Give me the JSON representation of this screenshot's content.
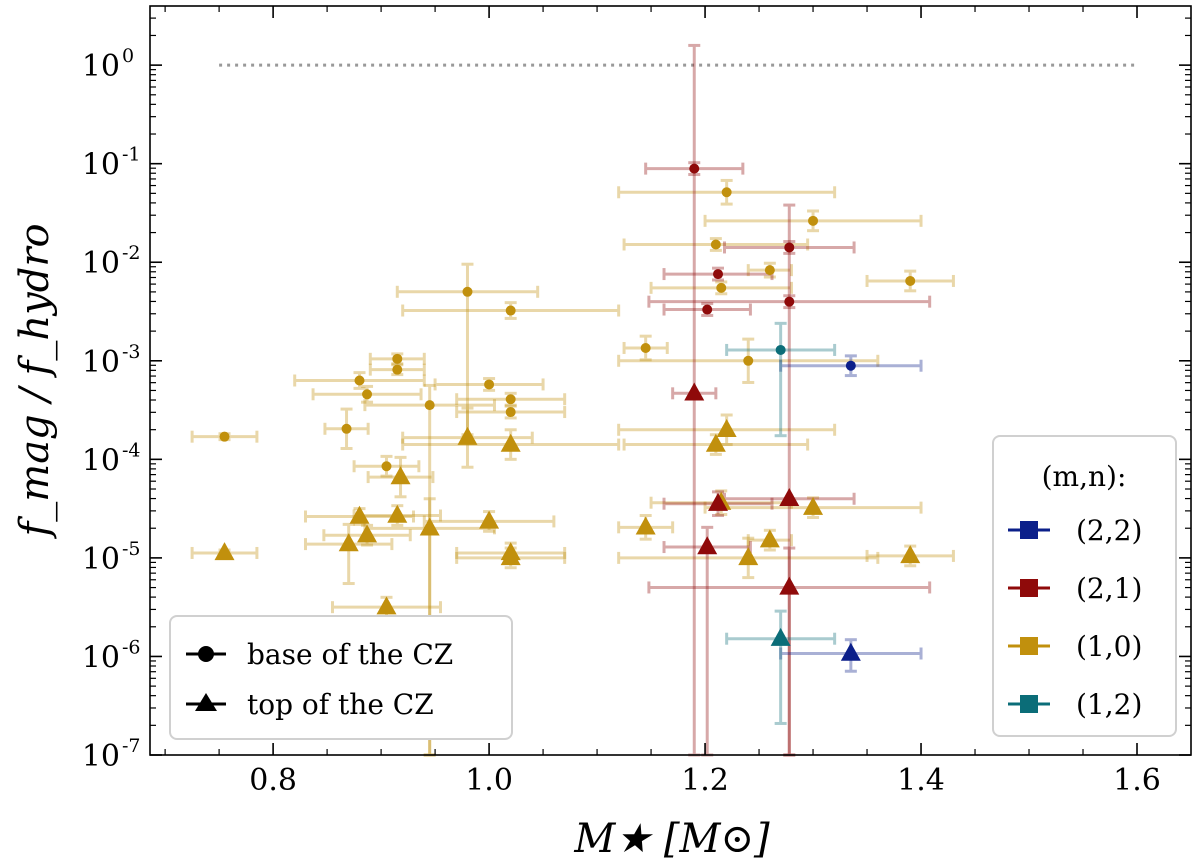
{
  "chart_data": {
    "type": "scatter",
    "title": "",
    "xlabel": "M★ [M⊙]",
    "ylabel": "f_mag / f_hydro",
    "xlim": [
      0.686,
      1.65
    ],
    "ylim_log10": [
      -7,
      0.6
    ],
    "yscale": "log",
    "x_ticks": [
      {
        "value": 0.8,
        "label": "0.8"
      },
      {
        "value": 1.0,
        "label": "1.0"
      },
      {
        "value": 1.2,
        "label": "1.2"
      },
      {
        "value": 1.4,
        "label": "1.4"
      },
      {
        "value": 1.6,
        "label": "1.6"
      }
    ],
    "y_ticks": [
      {
        "exp": 0,
        "base": "10",
        "power": "0"
      },
      {
        "exp": -1,
        "base": "10",
        "power": "-1"
      },
      {
        "exp": -2,
        "base": "10",
        "power": "-2"
      },
      {
        "exp": -3,
        "base": "10",
        "power": "-3"
      },
      {
        "exp": -4,
        "base": "10",
        "power": "-4"
      },
      {
        "exp": -5,
        "base": "10",
        "power": "-5"
      },
      {
        "exp": -6,
        "base": "10",
        "power": "-6"
      },
      {
        "exp": -7,
        "base": "10",
        "power": "-7"
      }
    ],
    "reference_line": {
      "y": 1.0,
      "x_range": [
        0.75,
        1.6
      ],
      "style": "dotted",
      "color": "#999999"
    },
    "colors": {
      "(2,2)": "#0b1f8a",
      "(2,1)": "#8f0a0a",
      "(1,0)": "#c1900d",
      "(1,2)": "#0b6d78"
    },
    "legend_modes": {
      "title": "(m,n):",
      "position": "lower-right",
      "entries": [
        "(2,2)",
        "(2,1)",
        "(1,0)",
        "(1,2)"
      ]
    },
    "legend_markers": {
      "position": "lower-left",
      "entries": [
        {
          "marker": "circle",
          "label": "base of the CZ"
        },
        {
          "marker": "triangle",
          "label": "top of the CZ"
        }
      ]
    },
    "series": [
      {
        "name": "(1,0) base of the CZ",
        "mode": "(1,0)",
        "marker": "circle",
        "points": [
          {
            "x": 0.755,
            "y": -3.77,
            "xerr": [
              0.03,
              0.03
            ],
            "yerr": [
              0.03,
              0.03
            ]
          },
          {
            "x": 0.88,
            "y": -3.2,
            "xerr": [
              0.06,
              0.06
            ],
            "yerr": [
              0.08,
              0.08
            ]
          },
          {
            "x": 0.887,
            "y": -3.34,
            "xerr": [
              0.05,
              0.05
            ],
            "yerr": [
              0.08,
              0.08
            ]
          },
          {
            "x": 0.915,
            "y": -2.98,
            "xerr": [
              0.025,
              0.025
            ],
            "yerr": [
              0.05,
              0.05
            ]
          },
          {
            "x": 0.915,
            "y": -3.09,
            "xerr": [
              0.025,
              0.025
            ],
            "yerr": [
              0.05,
              0.05
            ]
          },
          {
            "x": 0.868,
            "y": -3.69,
            "xerr": [
              0.02,
              0.02
            ],
            "yerr": [
              0.2,
              0.2
            ]
          },
          {
            "x": 0.905,
            "y": -4.07,
            "xerr": [
              0.03,
              0.03
            ],
            "yerr": [
              0.1,
              0.1
            ]
          },
          {
            "x": 0.945,
            "y": -3.45,
            "xerr": [
              0.06,
              0.06
            ],
            "yerr": [
              3.55,
              0.2
            ]
          },
          {
            "x": 0.98,
            "y": -2.3,
            "xerr": [
              0.065,
              0.065
            ],
            "yerr": [
              1.45,
              0.28
            ]
          },
          {
            "x": 1.0,
            "y": -3.24,
            "xerr": [
              0.05,
              0.05
            ],
            "yerr": [
              0.06,
              0.06
            ]
          },
          {
            "x": 1.02,
            "y": -2.49,
            "xerr": [
              0.1,
              0.1
            ],
            "yerr": [
              0.08,
              0.08
            ]
          },
          {
            "x": 1.02,
            "y": -3.39,
            "xerr": [
              0.05,
              0.05
            ],
            "yerr": [
              0.06,
              0.06
            ]
          },
          {
            "x": 1.02,
            "y": -3.52,
            "xerr": [
              0.05,
              0.05
            ],
            "yerr": [
              0.06,
              0.06
            ]
          },
          {
            "x": 1.145,
            "y": -2.87,
            "xerr": [
              0.02,
              0.02
            ],
            "yerr": [
              0.12,
              0.12
            ]
          },
          {
            "x": 1.21,
            "y": -1.82,
            "xerr": [
              0.085,
              0.085
            ],
            "yerr": [
              0.06,
              0.06
            ]
          },
          {
            "x": 1.215,
            "y": -2.26,
            "xerr": [
              0.065,
              0.065
            ],
            "yerr": [
              0.06,
              0.06
            ]
          },
          {
            "x": 1.22,
            "y": -1.29,
            "xerr": [
              0.1,
              0.1
            ],
            "yerr": [
              0.12,
              0.12
            ]
          },
          {
            "x": 1.24,
            "y": -3.0,
            "xerr": [
              0.12,
              0.12
            ],
            "yerr": [
              0.22,
              0.22
            ]
          },
          {
            "x": 1.26,
            "y": -2.08,
            "xerr": [
              0.02,
              0.02
            ],
            "yerr": [
              0.07,
              0.07
            ]
          },
          {
            "x": 1.3,
            "y": -1.58,
            "xerr": [
              0.1,
              0.1
            ],
            "yerr": [
              0.1,
              0.1
            ]
          },
          {
            "x": 1.39,
            "y": -2.19,
            "xerr": [
              0.04,
              0.04
            ],
            "yerr": [
              0.1,
              0.1
            ]
          }
        ]
      },
      {
        "name": "(1,0) top of the CZ",
        "mode": "(1,0)",
        "marker": "triangle",
        "points": [
          {
            "x": 0.755,
            "y": -4.95,
            "xerr": [
              0.03,
              0.03
            ],
            "yerr": [
              0.03,
              0.03
            ]
          },
          {
            "x": 0.87,
            "y": -4.86,
            "xerr": [
              0.04,
              0.04
            ],
            "yerr": [
              0.4,
              0.2
            ]
          },
          {
            "x": 0.88,
            "y": -4.58,
            "xerr": [
              0.05,
              0.05
            ],
            "yerr": [
              0.08,
              0.08
            ]
          },
          {
            "x": 0.887,
            "y": -4.77,
            "xerr": [
              0.04,
              0.04
            ],
            "yerr": [
              0.1,
              0.1
            ]
          },
          {
            "x": 0.905,
            "y": -5.5,
            "xerr": [
              0.05,
              0.05
            ],
            "yerr": [
              0.1,
              0.1
            ]
          },
          {
            "x": 0.915,
            "y": -4.57,
            "xerr": [
              0.04,
              0.04
            ],
            "yerr": [
              0.1,
              0.1
            ]
          },
          {
            "x": 0.918,
            "y": -4.18,
            "xerr": [
              0.03,
              0.03
            ],
            "yerr": [
              0.2,
              0.2
            ]
          },
          {
            "x": 0.945,
            "y": -4.7,
            "xerr": [
              0.06,
              0.06
            ],
            "yerr": [
              2.3,
              0.3
            ]
          },
          {
            "x": 0.98,
            "y": -3.78,
            "xerr": [
              0.06,
              0.06
            ],
            "yerr": [
              0.3,
              0.3
            ]
          },
          {
            "x": 1.0,
            "y": -4.63,
            "xerr": [
              0.06,
              0.06
            ],
            "yerr": [
              0.1,
              0.1
            ]
          },
          {
            "x": 1.02,
            "y": -3.85,
            "xerr": [
              0.1,
              0.1
            ],
            "yerr": [
              0.15,
              0.15
            ]
          },
          {
            "x": 1.02,
            "y": -4.95,
            "xerr": [
              0.05,
              0.05
            ],
            "yerr": [
              0.1,
              0.1
            ]
          },
          {
            "x": 1.02,
            "y": -5.0,
            "xerr": [
              0.05,
              0.05
            ],
            "yerr": [
              0.1,
              0.1
            ]
          },
          {
            "x": 1.145,
            "y": -4.69,
            "xerr": [
              0.025,
              0.025
            ],
            "yerr": [
              0.12,
              0.12
            ]
          },
          {
            "x": 1.21,
            "y": -3.85,
            "xerr": [
              0.085,
              0.085
            ],
            "yerr": [
              0.1,
              0.1
            ]
          },
          {
            "x": 1.215,
            "y": -4.44,
            "xerr": [
              0.065,
              0.065
            ],
            "yerr": [
              0.12,
              0.12
            ]
          },
          {
            "x": 1.22,
            "y": -3.7,
            "xerr": [
              0.1,
              0.1
            ],
            "yerr": [
              0.15,
              0.15
            ]
          },
          {
            "x": 1.24,
            "y": -5.0,
            "xerr": [
              0.12,
              0.12
            ],
            "yerr": [
              0.2,
              0.2
            ]
          },
          {
            "x": 1.26,
            "y": -4.82,
            "xerr": [
              0.02,
              0.02
            ],
            "yerr": [
              0.1,
              0.1
            ]
          },
          {
            "x": 1.3,
            "y": -4.49,
            "xerr": [
              0.1,
              0.1
            ],
            "yerr": [
              0.1,
              0.1
            ]
          },
          {
            "x": 1.39,
            "y": -4.98,
            "xerr": [
              0.04,
              0.04
            ],
            "yerr": [
              0.1,
              0.1
            ]
          }
        ]
      },
      {
        "name": "(2,1) base of the CZ",
        "mode": "(2,1)",
        "marker": "circle",
        "points": [
          {
            "x": 1.19,
            "y": -1.05,
            "xerr": [
              0.045,
              0.045
            ],
            "yerr": [
              0.06,
              0.06
            ]
          },
          {
            "x": 1.202,
            "y": -2.48,
            "xerr": [
              0.04,
              0.04
            ],
            "yerr": [
              0.06,
              0.06
            ]
          },
          {
            "x": 1.212,
            "y": -2.12,
            "xerr": [
              0.05,
              0.05
            ],
            "yerr": [
              0.06,
              0.06
            ]
          },
          {
            "x": 1.278,
            "y": -1.85,
            "xerr": [
              0.06,
              0.06
            ],
            "yerr": [
              0.06,
              0.06
            ]
          },
          {
            "x": 1.278,
            "y": -2.4,
            "xerr": [
              0.13,
              0.13
            ],
            "yerr": [
              0.06,
              0.06
            ]
          }
        ]
      },
      {
        "name": "(2,1) top of the CZ",
        "mode": "(2,1)",
        "marker": "triangle",
        "points": [
          {
            "x": 1.19,
            "y": -3.33,
            "xerr": [
              0.02,
              0.02
            ],
            "yerr": [
              3.67,
              3.53
            ]
          },
          {
            "x": 1.202,
            "y": -4.89,
            "xerr": [
              0.04,
              0.04
            ],
            "yerr": [
              2.11,
              0.2
            ]
          },
          {
            "x": 1.212,
            "y": -4.45,
            "xerr": [
              0.05,
              0.05
            ],
            "yerr": [
              0.12,
              0.12
            ]
          },
          {
            "x": 1.278,
            "y": -4.4,
            "xerr": [
              0.06,
              0.06
            ],
            "yerr": [
              2.6,
              2.98
            ]
          },
          {
            "x": 1.278,
            "y": -5.3,
            "xerr": [
              0.13,
              0.13
            ],
            "yerr": [
              1.7,
              0.4
            ]
          }
        ]
      },
      {
        "name": "(2,2) base of the CZ",
        "mode": "(2,2)",
        "marker": "circle",
        "points": [
          {
            "x": 1.335,
            "y": -3.05,
            "xerr": [
              0.065,
              0.065
            ],
            "yerr": [
              0.1,
              0.1
            ]
          }
        ]
      },
      {
        "name": "(2,2) top of the CZ",
        "mode": "(2,2)",
        "marker": "triangle",
        "points": [
          {
            "x": 1.335,
            "y": -5.97,
            "xerr": [
              0.065,
              0.065
            ],
            "yerr": [
              0.18,
              0.14
            ]
          }
        ]
      },
      {
        "name": "(1,2) base of the CZ",
        "mode": "(1,2)",
        "marker": "circle",
        "points": [
          {
            "x": 1.27,
            "y": -2.89,
            "xerr": [
              0.05,
              0.05
            ],
            "yerr": [
              0.87,
              0.27
            ]
          }
        ]
      },
      {
        "name": "(1,2) top of the CZ",
        "mode": "(1,2)",
        "marker": "triangle",
        "points": [
          {
            "x": 1.27,
            "y": -5.82,
            "xerr": [
              0.05,
              0.05
            ],
            "yerr": [
              0.86,
              0.28
            ]
          }
        ]
      }
    ]
  }
}
